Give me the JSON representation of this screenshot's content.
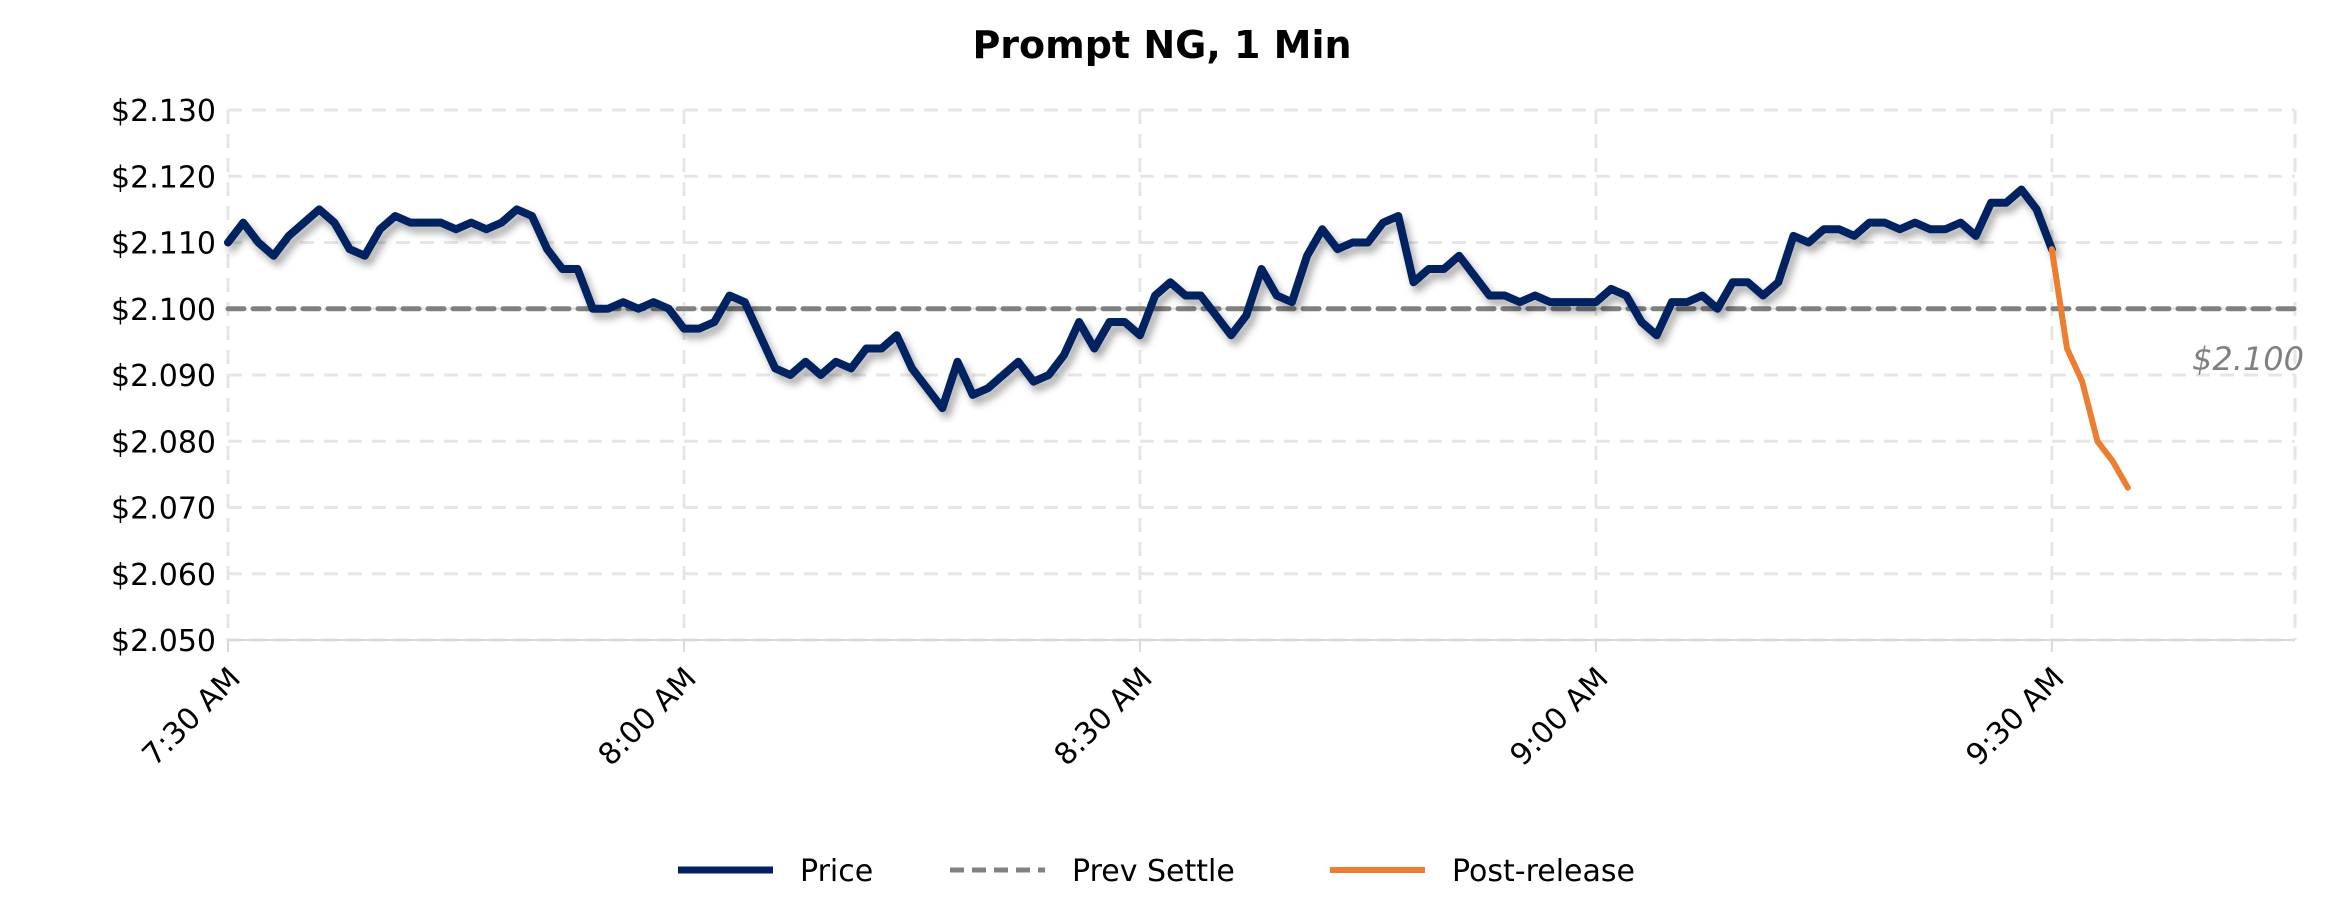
{
  "chart_data": {
    "type": "line",
    "title": "Prompt NG, 1 Min",
    "xlabel": "",
    "ylabel": "",
    "ylim": [
      2.05,
      2.13
    ],
    "y_ticks": [
      "$2.130",
      "$2.120",
      "$2.110",
      "$2.100",
      "$2.090",
      "$2.080",
      "$2.070",
      "$2.060",
      "$2.050"
    ],
    "y_tick_values": [
      2.13,
      2.12,
      2.11,
      2.1,
      2.09,
      2.08,
      2.07,
      2.06,
      2.05
    ],
    "x_start": "7:30 AM",
    "x_interval_minutes": 1,
    "x_range_minutes": [
      0,
      136
    ],
    "x_ticks": [
      "7:30 AM",
      "8:00 AM",
      "8:30 AM",
      "9:00 AM",
      "9:30 AM"
    ],
    "x_tick_minutes": [
      0,
      30,
      60,
      90,
      120
    ],
    "grid": true,
    "legend_position": "bottom",
    "series": [
      {
        "name": "Price",
        "color": "#002060",
        "start_minute": 0,
        "values": [
          2.11,
          2.113,
          2.11,
          2.108,
          2.111,
          2.113,
          2.115,
          2.113,
          2.109,
          2.108,
          2.112,
          2.114,
          2.113,
          2.113,
          2.113,
          2.112,
          2.113,
          2.112,
          2.113,
          2.115,
          2.114,
          2.109,
          2.106,
          2.106,
          2.1,
          2.1,
          2.101,
          2.1,
          2.101,
          2.1,
          2.097,
          2.097,
          2.098,
          2.102,
          2.101,
          2.096,
          2.091,
          2.09,
          2.092,
          2.09,
          2.092,
          2.091,
          2.094,
          2.094,
          2.096,
          2.091,
          2.088,
          2.085,
          2.092,
          2.087,
          2.088,
          2.09,
          2.092,
          2.089,
          2.09,
          2.093,
          2.098,
          2.094,
          2.098,
          2.098,
          2.096,
          2.102,
          2.104,
          2.102,
          2.102,
          2.099,
          2.096,
          2.099,
          2.106,
          2.102,
          2.101,
          2.108,
          2.112,
          2.109,
          2.11,
          2.11,
          2.113,
          2.114,
          2.104,
          2.106,
          2.106,
          2.108,
          2.105,
          2.102,
          2.102,
          2.101,
          2.102,
          2.101,
          2.101,
          2.101,
          2.101,
          2.103,
          2.102,
          2.098,
          2.096,
          2.101,
          2.101,
          2.102,
          2.1,
          2.104,
          2.104,
          2.102,
          2.104,
          2.111,
          2.11,
          2.112,
          2.112,
          2.111,
          2.113,
          2.113,
          2.112,
          2.113,
          2.112,
          2.112,
          2.113,
          2.111,
          2.116,
          2.116,
          2.118,
          2.115,
          2.109
        ]
      },
      {
        "name": "Prev Settle",
        "color": "#808080",
        "dashed": true,
        "constant": 2.1
      },
      {
        "name": "Post-release",
        "color": "#ED7D31",
        "start_minute": 120,
        "values": [
          2.109,
          2.094,
          2.089,
          2.08,
          2.077,
          2.073
        ]
      }
    ],
    "annotations": [
      {
        "text": "$2.100",
        "y": 2.1
      }
    ]
  }
}
